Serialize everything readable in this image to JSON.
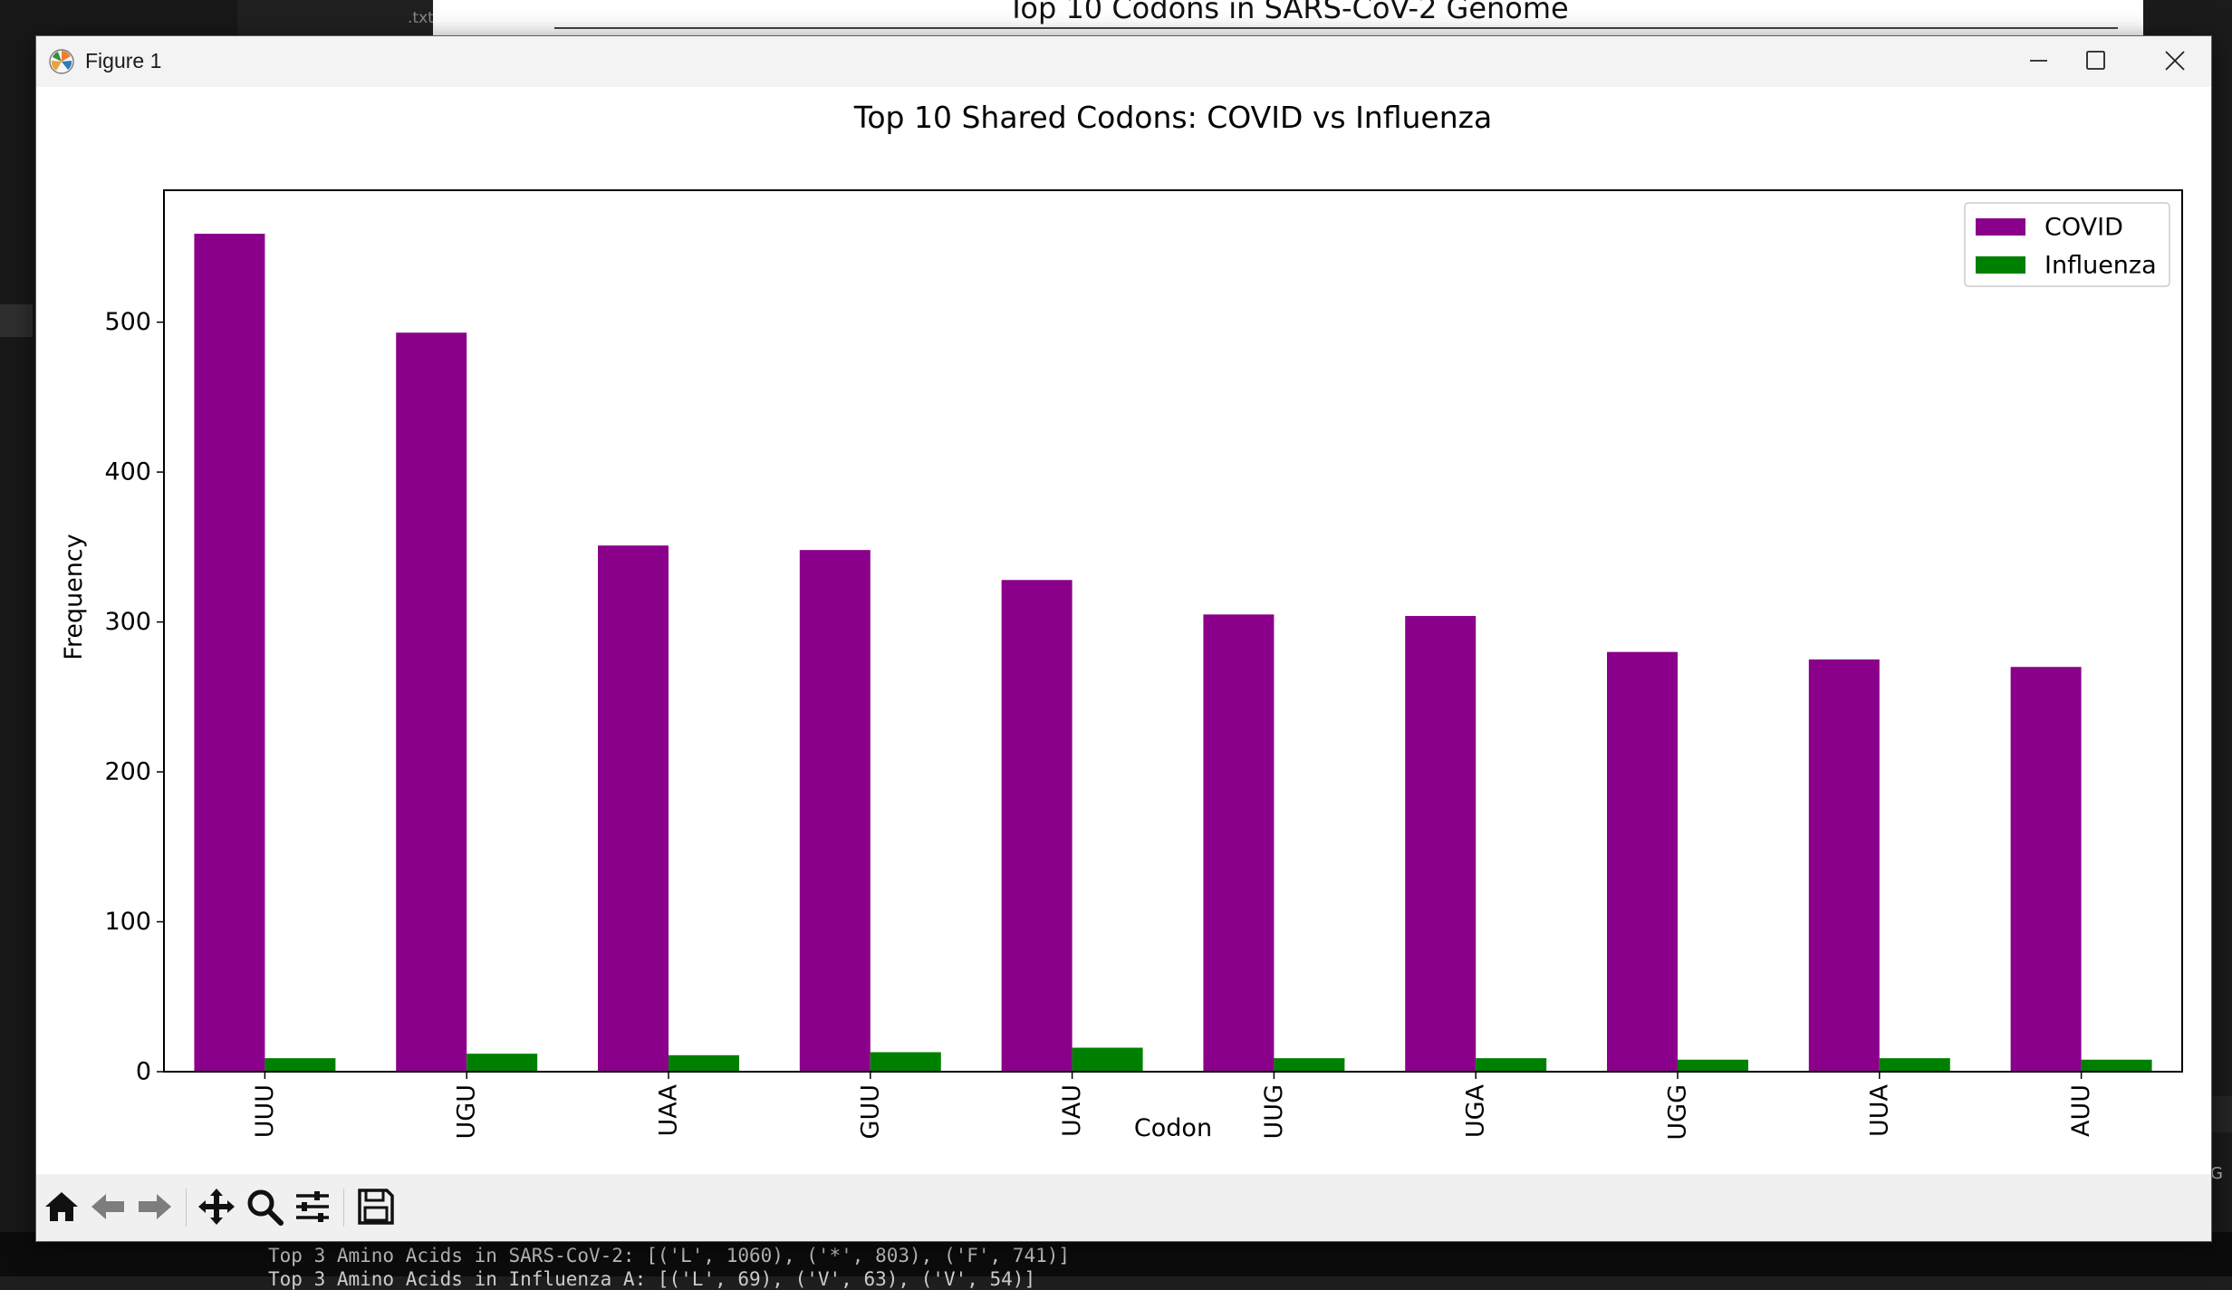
{
  "background": {
    "tab_label": ".txt",
    "behind_figure_title": "Top 10 Codons in SARS-CoV-2 Genome",
    "terminal_lines": [
      "Top 3 Amino Acids in SARS-CoV-2: [('L', 1060), ('*', 803), ('F', 741)]",
      "Top 3 Amino Acids in Influenza A: [('L', 69), ('V', 63), ('V', 54)]"
    ],
    "right_edge_text": "AG"
  },
  "window": {
    "title": "Figure 1",
    "controls": {
      "minimize": "minimize",
      "maximize": "maximize",
      "close": "close"
    }
  },
  "toolbar": {
    "buttons": [
      "home-icon",
      "back-arrow-icon",
      "forward-arrow-icon",
      "pan-icon",
      "zoom-icon",
      "configure-subplots-icon",
      "save-icon"
    ]
  },
  "chart_data": {
    "type": "bar",
    "title": "Top 10 Shared Codons: COVID vs Influenza",
    "xlabel": "Codon",
    "ylabel": "Frequency",
    "categories": [
      "UUU",
      "UGU",
      "UAA",
      "GUU",
      "UAU",
      "UUG",
      "UGA",
      "UGG",
      "UUA",
      "AUU"
    ],
    "series": [
      {
        "name": "COVID",
        "color": "#8b008b",
        "values": [
          559,
          493,
          351,
          348,
          328,
          305,
          304,
          280,
          275,
          270
        ]
      },
      {
        "name": "Influenza",
        "color": "#008000",
        "values": [
          9,
          12,
          11,
          13,
          16,
          9,
          9,
          8,
          9,
          8
        ]
      }
    ],
    "ylim": [
      0,
      588
    ],
    "yticks": [
      0,
      100,
      200,
      300,
      400,
      500
    ],
    "legend_position": "top-right",
    "grid": false
  }
}
